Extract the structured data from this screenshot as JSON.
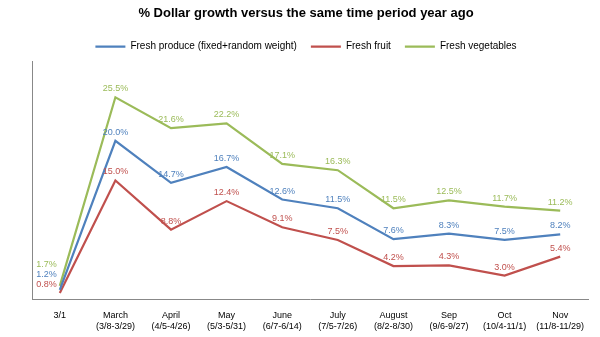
{
  "chart_data": {
    "type": "line",
    "title": "% Dollar growth versus the same time period year ago",
    "categories": [
      "3/1",
      "March (3/8-3/29)",
      "April (4/5-4/26)",
      "May (5/3-5/31)",
      "June (6/7-6/14)",
      "July (7/5-7/26)",
      "August (8/2-8/30)",
      "Sep (9/6-9/27)",
      "Oct (10/4-11/1)",
      "Nov (11/8-11/29)"
    ],
    "series": [
      {
        "name": "Fresh produce (fixed+random weight)",
        "color": "#4f81bd",
        "values": [
          1.2,
          20.0,
          14.7,
          16.7,
          12.6,
          11.5,
          7.6,
          8.3,
          7.5,
          8.2
        ],
        "value_labels": [
          "1.2%",
          "20.0%",
          "14.7%",
          "16.7%",
          "12.6%",
          "11.5%",
          "7.6%",
          "8.3%",
          "7.5%",
          "8.2%"
        ]
      },
      {
        "name": "Fresh fruit",
        "color": "#c0504d",
        "values": [
          0.8,
          15.0,
          8.8,
          12.4,
          9.1,
          7.5,
          4.2,
          4.3,
          3.0,
          5.4
        ],
        "value_labels": [
          "0.8%",
          "15.0%",
          "8.8%",
          "12.4%",
          "9.1%",
          "7.5%",
          "4.2%",
          "4.3%",
          "3.0%",
          "5.4%"
        ]
      },
      {
        "name": "Fresh vegetables",
        "color": "#9bbb59",
        "values": [
          1.7,
          25.5,
          21.6,
          22.2,
          17.1,
          16.3,
          11.5,
          12.5,
          11.7,
          11.2
        ],
        "value_labels": [
          "1.7%",
          "25.5%",
          "21.6%",
          "22.2%",
          "17.1%",
          "16.3%",
          "11.5%",
          "12.5%",
          "11.7%",
          "11.2%"
        ]
      }
    ],
    "ylim": [
      0,
      30
    ],
    "grid": false,
    "legend": "top",
    "data_labels": true,
    "tick_labels": "x",
    "marker": "none"
  }
}
